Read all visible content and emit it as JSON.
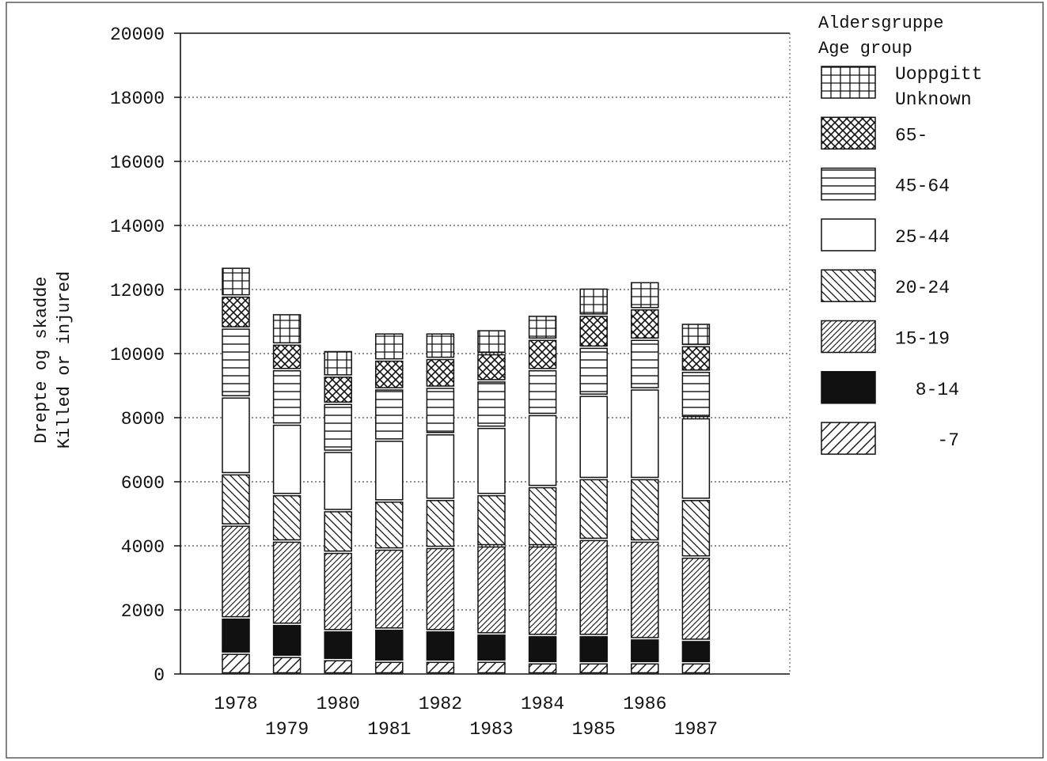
{
  "chart_data": {
    "type": "bar",
    "stacked": true,
    "ylabel": [
      "Drepte og skadde",
      "Killed or injured"
    ],
    "ylim": [
      0,
      20000
    ],
    "yticks": [
      0,
      2000,
      4000,
      6000,
      8000,
      10000,
      12000,
      14000,
      16000,
      18000,
      20000
    ],
    "grid": "horizontal-dotted",
    "legend_title": [
      "Aldersgruppe",
      "Age group"
    ],
    "legend_position": "right",
    "categories": [
      "1978",
      "1979",
      "1980",
      "1981",
      "1982",
      "1983",
      "1984",
      "1985",
      "1986",
      "1987"
    ],
    "series": [
      {
        "name": "-7",
        "pattern": "hatch-light",
        "values": [
          650,
          550,
          450,
          400,
          400,
          400,
          350,
          350,
          350,
          350
        ]
      },
      {
        "name": "8-14",
        "pattern": "solid-black",
        "values": [
          1100,
          1000,
          900,
          1000,
          950,
          850,
          850,
          850,
          750,
          700
        ]
      },
      {
        "name": "15-19",
        "pattern": "hatch-dense",
        "values": [
          2900,
          2600,
          2450,
          2500,
          2600,
          2750,
          2800,
          3000,
          3050,
          2600
        ]
      },
      {
        "name": "20-24",
        "pattern": "backslash",
        "values": [
          1600,
          1450,
          1300,
          1500,
          1500,
          1600,
          1850,
          1900,
          1950,
          1800
        ]
      },
      {
        "name": "25-44",
        "pattern": "empty",
        "values": [
          2400,
          2200,
          1850,
          1900,
          2050,
          2100,
          2250,
          2600,
          2800,
          2550
        ]
      },
      {
        "name": "45-64",
        "pattern": "horizontal-lines",
        "values": [
          2150,
          1700,
          1500,
          1600,
          1450,
          1450,
          1400,
          1500,
          1550,
          1450
        ]
      },
      {
        "name": "65-",
        "pattern": "crosshatch",
        "values": [
          1000,
          800,
          850,
          900,
          900,
          850,
          950,
          1000,
          950,
          800
        ]
      },
      {
        "name": "Uoppgitt\nUnknown",
        "pattern": "grid",
        "values": [
          900,
          950,
          800,
          850,
          800,
          750,
          750,
          850,
          850,
          700
        ]
      }
    ]
  }
}
